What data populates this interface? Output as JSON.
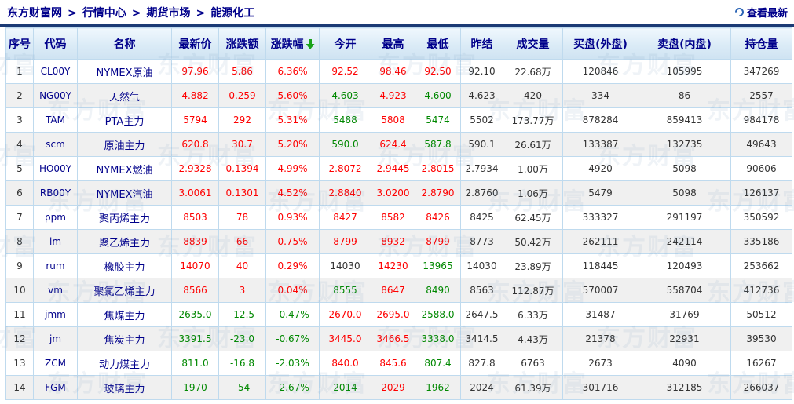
{
  "colors": {
    "up": "#fe0000",
    "down": "#008800",
    "flat": "#333333",
    "link": "#00008b",
    "accent": "#1b3a75",
    "arrow": "#1aa31a"
  },
  "breadcrumb": {
    "items": [
      "东方财富网",
      "行情中心",
      "期货市场",
      "能源化工"
    ],
    "separator": ">"
  },
  "toolbar": {
    "refresh_label": "查看最新"
  },
  "watermark": {
    "text": "东方财富"
  },
  "table": {
    "headers": [
      {
        "key": "serial",
        "label": "序号"
      },
      {
        "key": "code",
        "label": "代码"
      },
      {
        "key": "name",
        "label": "名称"
      },
      {
        "key": "last-price",
        "label": "最新价"
      },
      {
        "key": "change-amount",
        "label": "涨跌额"
      },
      {
        "key": "change-percent",
        "label": "涨跌幅",
        "icon": "sort-down-arrow"
      },
      {
        "key": "open",
        "label": "今开"
      },
      {
        "key": "high",
        "label": "最高"
      },
      {
        "key": "low",
        "label": "最低"
      },
      {
        "key": "prev-settle",
        "label": "昨结"
      },
      {
        "key": "volume",
        "label": "成交量"
      },
      {
        "key": "buy-outer",
        "label": "买盘(外盘)"
      },
      {
        "key": "sell-inner",
        "label": "卖盘(内盘)"
      },
      {
        "key": "open-interest",
        "label": "持仓量"
      }
    ],
    "rows": [
      {
        "no": "1",
        "code": "CL00Y",
        "name": "NYMEX原油",
        "cells": [
          [
            "97.96",
            "up"
          ],
          [
            "5.86",
            "up"
          ],
          [
            "6.36%",
            "up"
          ],
          [
            "92.52",
            "up"
          ],
          [
            "98.46",
            "up"
          ],
          [
            "92.50",
            "up"
          ],
          [
            "92.10",
            "flat"
          ],
          [
            "22.68万",
            "flat"
          ],
          [
            "120846",
            "flat"
          ],
          [
            "105995",
            "flat"
          ],
          [
            "347269",
            "flat"
          ]
        ]
      },
      {
        "no": "2",
        "code": "NG00Y",
        "name": "天然气",
        "cells": [
          [
            "4.882",
            "up"
          ],
          [
            "0.259",
            "up"
          ],
          [
            "5.60%",
            "up"
          ],
          [
            "4.603",
            "down"
          ],
          [
            "4.923",
            "up"
          ],
          [
            "4.600",
            "down"
          ],
          [
            "4.623",
            "flat"
          ],
          [
            "420",
            "flat"
          ],
          [
            "334",
            "flat"
          ],
          [
            "86",
            "flat"
          ],
          [
            "2557",
            "flat"
          ]
        ]
      },
      {
        "no": "3",
        "code": "TAM",
        "name": "PTA主力",
        "cells": [
          [
            "5794",
            "up"
          ],
          [
            "292",
            "up"
          ],
          [
            "5.31%",
            "up"
          ],
          [
            "5488",
            "down"
          ],
          [
            "5808",
            "up"
          ],
          [
            "5474",
            "down"
          ],
          [
            "5502",
            "flat"
          ],
          [
            "173.77万",
            "flat"
          ],
          [
            "878284",
            "flat"
          ],
          [
            "859413",
            "flat"
          ],
          [
            "984178",
            "flat"
          ]
        ]
      },
      {
        "no": "4",
        "code": "scm",
        "name": "原油主力",
        "cells": [
          [
            "620.8",
            "up"
          ],
          [
            "30.7",
            "up"
          ],
          [
            "5.20%",
            "up"
          ],
          [
            "590.0",
            "down"
          ],
          [
            "624.4",
            "up"
          ],
          [
            "587.8",
            "down"
          ],
          [
            "590.1",
            "flat"
          ],
          [
            "26.61万",
            "flat"
          ],
          [
            "133387",
            "flat"
          ],
          [
            "132735",
            "flat"
          ],
          [
            "49643",
            "flat"
          ]
        ]
      },
      {
        "no": "5",
        "code": "HO00Y",
        "name": "NYMEX燃油",
        "cells": [
          [
            "2.9328",
            "up"
          ],
          [
            "0.1394",
            "up"
          ],
          [
            "4.99%",
            "up"
          ],
          [
            "2.8072",
            "up"
          ],
          [
            "2.9445",
            "up"
          ],
          [
            "2.8015",
            "up"
          ],
          [
            "2.7934",
            "flat"
          ],
          [
            "1.00万",
            "flat"
          ],
          [
            "4920",
            "flat"
          ],
          [
            "5098",
            "flat"
          ],
          [
            "90606",
            "flat"
          ]
        ]
      },
      {
        "no": "6",
        "code": "RB00Y",
        "name": "NYMEX汽油",
        "cells": [
          [
            "3.0061",
            "up"
          ],
          [
            "0.1301",
            "up"
          ],
          [
            "4.52%",
            "up"
          ],
          [
            "2.8840",
            "up"
          ],
          [
            "3.0200",
            "up"
          ],
          [
            "2.8790",
            "up"
          ],
          [
            "2.8760",
            "flat"
          ],
          [
            "1.06万",
            "flat"
          ],
          [
            "5479",
            "flat"
          ],
          [
            "5098",
            "flat"
          ],
          [
            "126137",
            "flat"
          ]
        ]
      },
      {
        "no": "7",
        "code": "ppm",
        "name": "聚丙烯主力",
        "cells": [
          [
            "8503",
            "up"
          ],
          [
            "78",
            "up"
          ],
          [
            "0.93%",
            "up"
          ],
          [
            "8427",
            "up"
          ],
          [
            "8582",
            "up"
          ],
          [
            "8426",
            "up"
          ],
          [
            "8425",
            "flat"
          ],
          [
            "62.45万",
            "flat"
          ],
          [
            "333327",
            "flat"
          ],
          [
            "291197",
            "flat"
          ],
          [
            "350592",
            "flat"
          ]
        ]
      },
      {
        "no": "8",
        "code": "lm",
        "name": "聚乙烯主力",
        "cells": [
          [
            "8839",
            "up"
          ],
          [
            "66",
            "up"
          ],
          [
            "0.75%",
            "up"
          ],
          [
            "8799",
            "up"
          ],
          [
            "8932",
            "up"
          ],
          [
            "8799",
            "up"
          ],
          [
            "8773",
            "flat"
          ],
          [
            "50.42万",
            "flat"
          ],
          [
            "262111",
            "flat"
          ],
          [
            "242114",
            "flat"
          ],
          [
            "335186",
            "flat"
          ]
        ]
      },
      {
        "no": "9",
        "code": "rum",
        "name": "橡胶主力",
        "cells": [
          [
            "14070",
            "up"
          ],
          [
            "40",
            "up"
          ],
          [
            "0.29%",
            "up"
          ],
          [
            "14030",
            "flat"
          ],
          [
            "14230",
            "up"
          ],
          [
            "13965",
            "down"
          ],
          [
            "14030",
            "flat"
          ],
          [
            "23.89万",
            "flat"
          ],
          [
            "118445",
            "flat"
          ],
          [
            "120493",
            "flat"
          ],
          [
            "253662",
            "flat"
          ]
        ]
      },
      {
        "no": "10",
        "code": "vm",
        "name": "聚氯乙烯主力",
        "cells": [
          [
            "8566",
            "up"
          ],
          [
            "3",
            "up"
          ],
          [
            "0.04%",
            "up"
          ],
          [
            "8555",
            "down"
          ],
          [
            "8647",
            "up"
          ],
          [
            "8490",
            "down"
          ],
          [
            "8563",
            "flat"
          ],
          [
            "112.87万",
            "flat"
          ],
          [
            "570007",
            "flat"
          ],
          [
            "558704",
            "flat"
          ],
          [
            "412736",
            "flat"
          ]
        ]
      },
      {
        "no": "11",
        "code": "jmm",
        "name": "焦煤主力",
        "cells": [
          [
            "2635.0",
            "down"
          ],
          [
            "-12.5",
            "down"
          ],
          [
            "-0.47%",
            "down"
          ],
          [
            "2670.0",
            "up"
          ],
          [
            "2695.0",
            "up"
          ],
          [
            "2588.0",
            "down"
          ],
          [
            "2647.5",
            "flat"
          ],
          [
            "6.33万",
            "flat"
          ],
          [
            "31487",
            "flat"
          ],
          [
            "31769",
            "flat"
          ],
          [
            "50512",
            "flat"
          ]
        ]
      },
      {
        "no": "12",
        "code": "jm",
        "name": "焦炭主力",
        "cells": [
          [
            "3391.5",
            "down"
          ],
          [
            "-23.0",
            "down"
          ],
          [
            "-0.67%",
            "down"
          ],
          [
            "3445.0",
            "up"
          ],
          [
            "3466.5",
            "up"
          ],
          [
            "3338.0",
            "down"
          ],
          [
            "3414.5",
            "flat"
          ],
          [
            "4.43万",
            "flat"
          ],
          [
            "21378",
            "flat"
          ],
          [
            "22931",
            "flat"
          ],
          [
            "39530",
            "flat"
          ]
        ]
      },
      {
        "no": "13",
        "code": "ZCM",
        "name": "动力煤主力",
        "cells": [
          [
            "811.0",
            "down"
          ],
          [
            "-16.8",
            "down"
          ],
          [
            "-2.03%",
            "down"
          ],
          [
            "840.0",
            "up"
          ],
          [
            "845.6",
            "up"
          ],
          [
            "807.4",
            "down"
          ],
          [
            "827.8",
            "flat"
          ],
          [
            "6763",
            "flat"
          ],
          [
            "2673",
            "flat"
          ],
          [
            "4090",
            "flat"
          ],
          [
            "16267",
            "flat"
          ]
        ]
      },
      {
        "no": "14",
        "code": "FGM",
        "name": "玻璃主力",
        "cells": [
          [
            "1970",
            "down"
          ],
          [
            "-54",
            "down"
          ],
          [
            "-2.67%",
            "down"
          ],
          [
            "2014",
            "down"
          ],
          [
            "2029",
            "up"
          ],
          [
            "1962",
            "down"
          ],
          [
            "2024",
            "flat"
          ],
          [
            "61.39万",
            "flat"
          ],
          [
            "301716",
            "flat"
          ],
          [
            "312185",
            "flat"
          ],
          [
            "266037",
            "flat"
          ]
        ]
      }
    ]
  }
}
